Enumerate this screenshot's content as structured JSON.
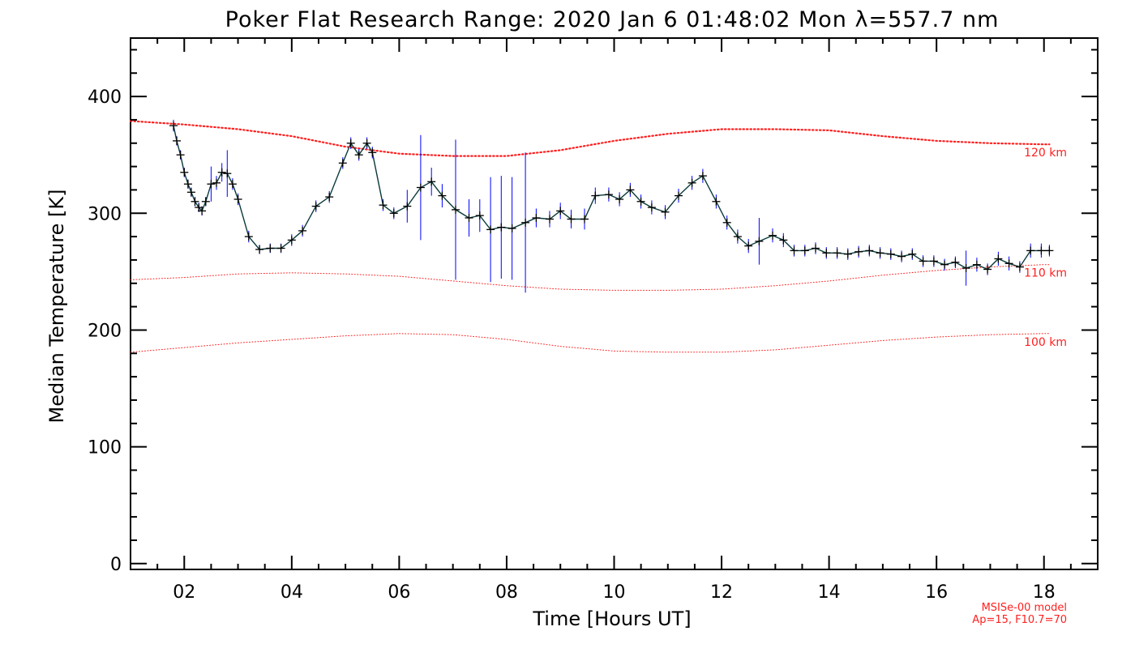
{
  "chart_data": {
    "type": "line",
    "title": "Poker Flat Research Range: 2020 Jan  6 01:48:02 Mon λ=557.7 nm",
    "xlabel": "Time [Hours UT]",
    "ylabel": "Median Temperature [K]",
    "xlim": [
      1.0,
      19.0
    ],
    "ylim": [
      -5,
      450
    ],
    "x_ticks": [
      2,
      4,
      6,
      8,
      10,
      12,
      14,
      16,
      18
    ],
    "x_tick_labels": [
      "02",
      "04",
      "06",
      "08",
      "10",
      "12",
      "14",
      "16",
      "18"
    ],
    "y_ticks": [
      0,
      100,
      200,
      300,
      400
    ],
    "y_tick_labels": [
      "0",
      "100",
      "200",
      "300",
      "400"
    ],
    "grid": false,
    "colors": {
      "data_line": "#0a3a3a",
      "error_bar": "#0000ff",
      "marker": "#000000",
      "model": "#ff2020"
    },
    "series": [
      {
        "x": [
          1.8,
          1.86,
          1.93,
          2.0,
          2.07,
          2.13,
          2.2,
          2.27,
          2.33,
          2.4,
          2.5,
          2.6,
          2.7,
          2.8,
          2.9,
          3.0,
          3.2,
          3.4,
          3.6,
          3.8,
          4.0,
          4.2,
          4.45,
          4.7,
          4.95,
          5.1,
          5.25,
          5.4,
          5.5,
          5.7,
          5.9,
          6.15,
          6.4,
          6.6,
          6.8,
          7.05,
          7.3,
          7.5,
          7.7,
          7.9,
          8.1,
          8.35,
          8.55,
          8.8,
          9.0,
          9.2,
          9.45,
          9.65,
          9.9,
          10.1,
          10.3,
          10.5,
          10.7,
          10.95,
          11.2,
          11.45,
          11.65,
          11.9,
          12.1,
          12.3,
          12.5,
          12.7,
          12.95,
          13.15,
          13.35,
          13.55,
          13.75,
          13.95,
          14.15,
          14.35,
          14.55,
          14.75,
          14.95,
          15.15,
          15.35,
          15.55,
          15.75,
          15.95,
          16.15,
          16.35,
          16.55,
          16.75,
          16.95,
          17.15,
          17.35,
          17.55,
          17.75,
          17.95,
          18.1
        ],
        "values": [
          375,
          362,
          350,
          335,
          325,
          318,
          310,
          305,
          302,
          310,
          325,
          326,
          335,
          334,
          325,
          312,
          280,
          269,
          270,
          270,
          277,
          285,
          306,
          314,
          343,
          360,
          350,
          360,
          352,
          307,
          300,
          306,
          322,
          327,
          315,
          303,
          296,
          298,
          286,
          288,
          287,
          292,
          296,
          295,
          302,
          295,
          295,
          315,
          316,
          312,
          320,
          310,
          305,
          301,
          315,
          326,
          332,
          310,
          292,
          280,
          272,
          276,
          281,
          277,
          268,
          268,
          270,
          266,
          266,
          265,
          267,
          268,
          266,
          265,
          263,
          265,
          259,
          259,
          256,
          258,
          253,
          256,
          252,
          261,
          257,
          254,
          268,
          268,
          268
        ],
        "errors": [
          5,
          4,
          4,
          4,
          4,
          4,
          4,
          4,
          4,
          4,
          15,
          6,
          8,
          20,
          5,
          5,
          5,
          4,
          4,
          4,
          5,
          5,
          5,
          5,
          5,
          5,
          5,
          5,
          5,
          5,
          5,
          14,
          45,
          12,
          10,
          60,
          16,
          14,
          45,
          44,
          44,
          60,
          8,
          7,
          7,
          8,
          9,
          7,
          6,
          6,
          6,
          6,
          6,
          6,
          6,
          6,
          6,
          6,
          6,
          6,
          6,
          20,
          6,
          6,
          5,
          5,
          5,
          5,
          5,
          5,
          5,
          5,
          5,
          5,
          5,
          5,
          5,
          5,
          5,
          5,
          15,
          6,
          5,
          6,
          6,
          5,
          6,
          6,
          5
        ]
      }
    ],
    "model_curves": [
      {
        "label": "120 km",
        "x": [
          1.0,
          2.0,
          3.0,
          4.0,
          5.0,
          6.0,
          7.0,
          8.0,
          9.0,
          10.0,
          11.0,
          12.0,
          13.0,
          14.0,
          15.0,
          16.0,
          17.0,
          18.0,
          18.1
        ],
        "values": [
          379,
          376,
          372,
          366,
          357,
          351,
          349,
          349,
          354,
          362,
          368,
          372,
          372,
          371,
          366,
          362,
          360,
          359,
          359
        ]
      },
      {
        "label": "110 km",
        "x": [
          1.0,
          2.0,
          3.0,
          4.0,
          5.0,
          6.0,
          7.0,
          8.0,
          9.0,
          10.0,
          11.0,
          12.0,
          13.0,
          14.0,
          15.0,
          16.0,
          17.0,
          18.0,
          18.1
        ],
        "values": [
          243,
          245,
          248,
          249,
          248,
          246,
          242,
          238,
          235,
          234,
          234,
          235,
          238,
          242,
          247,
          251,
          254,
          256,
          256
        ]
      },
      {
        "label": "100 km",
        "x": [
          1.0,
          2.0,
          3.0,
          4.0,
          5.0,
          6.0,
          7.0,
          8.0,
          9.0,
          10.0,
          11.0,
          12.0,
          13.0,
          14.0,
          15.0,
          16.0,
          17.0,
          18.0,
          18.1
        ],
        "values": [
          181,
          185,
          189,
          192,
          195,
          197,
          196,
          192,
          186,
          182,
          181,
          181,
          183,
          187,
          191,
          194,
          196,
          197,
          197
        ]
      }
    ],
    "annotations": [
      "MSISe-00 model",
      "Ap=15, F10.7=70"
    ]
  }
}
